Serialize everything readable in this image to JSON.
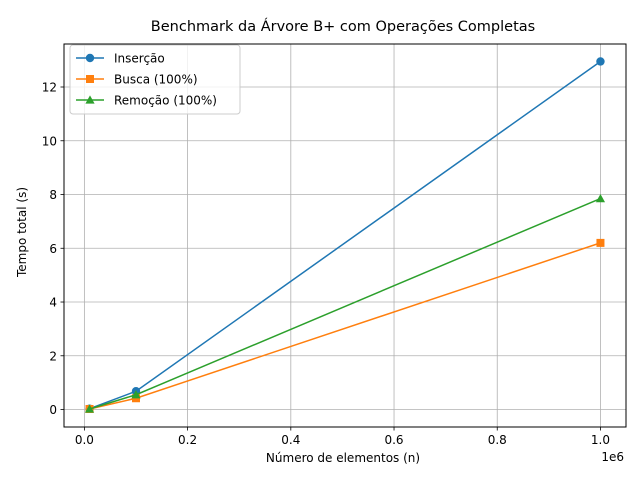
{
  "chart_data": {
    "type": "line",
    "title": "Benchmark da Árvore B+ com Operações Completas",
    "xlabel": "Número de elementos (n)",
    "ylabel": "Tempo total (s)",
    "x_offset_label": "1e6",
    "xlim": [
      -0.0395,
      1.0495
    ],
    "ylim": [
      -0.65,
      13.6
    ],
    "x_ticks": [
      0.0,
      0.2,
      0.4,
      0.6,
      0.8,
      1.0
    ],
    "x_tick_labels": [
      "0.0",
      "0.2",
      "0.4",
      "0.6",
      "0.8",
      "1.0"
    ],
    "y_ticks": [
      0,
      2,
      4,
      6,
      8,
      10,
      12
    ],
    "y_tick_labels": [
      "0",
      "2",
      "4",
      "6",
      "8",
      "10",
      "12"
    ],
    "grid": true,
    "legend_position": "top-left",
    "x": [
      10000,
      100000,
      1000000
    ],
    "series": [
      {
        "name": "Inserção",
        "values": [
          0.03,
          0.68,
          12.95
        ],
        "color": "#1f77b4",
        "marker": "circle"
      },
      {
        "name": "Busca (100%)",
        "values": [
          0.02,
          0.42,
          6.2
        ],
        "color": "#ff7f0e",
        "marker": "square"
      },
      {
        "name": "Remoção (100%)",
        "values": [
          0.02,
          0.55,
          7.85
        ],
        "color": "#2ca02c",
        "marker": "triangle"
      }
    ]
  }
}
